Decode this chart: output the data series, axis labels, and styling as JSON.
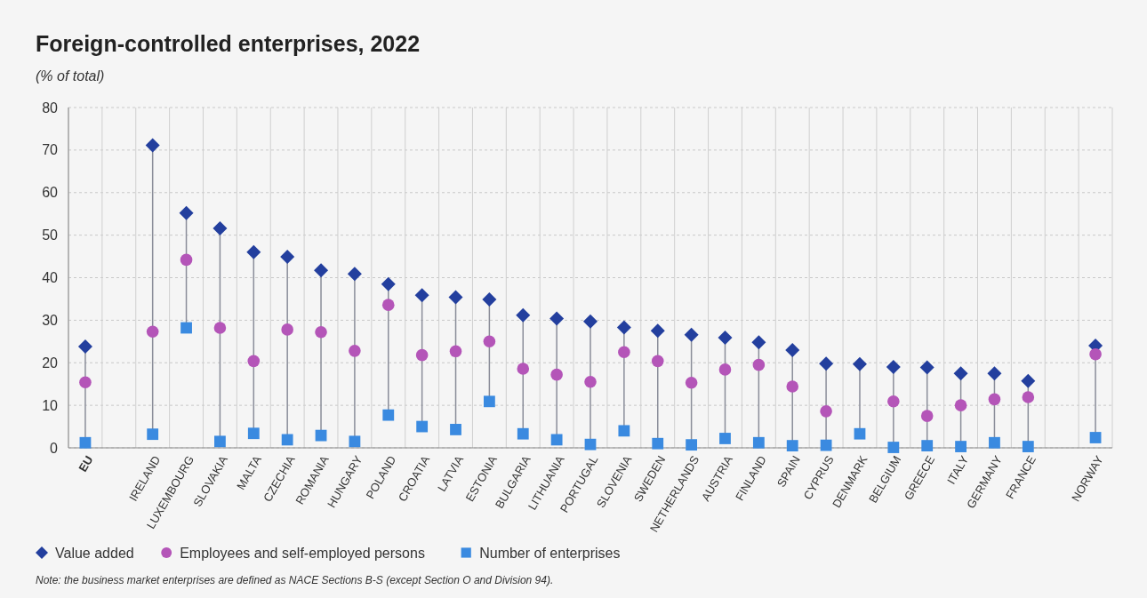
{
  "chart_data": {
    "type": "scatter",
    "title": "Foreign-controlled enterprises, 2022",
    "subtitle": "(% of total)",
    "categories": [
      "EU",
      null,
      "IRELAND",
      "LUXEMBOURG",
      "SLOVAKIA",
      "MALTA",
      "CZECHIA",
      "ROMANIA",
      "HUNGARY",
      "POLAND",
      "CROATIA",
      "LATVIA",
      "ESTONIA",
      "BULGARIA",
      "LITHUANIA",
      "PORTUGAL",
      "SLOVENIA",
      "SWEDEN",
      "NETHERLANDS",
      "AUSTRIA",
      "FINLAND",
      "SPAIN",
      "CYPRUS",
      "DENMARK",
      "BELGIUM",
      "GREECE",
      "ITALY",
      "GERMANY",
      "FRANCE",
      null,
      "NORWAY"
    ],
    "series": [
      {
        "name": "Value added",
        "color": "#233f9e",
        "marker": "diamond",
        "values": [
          23.8,
          null,
          71.1,
          55.2,
          51.6,
          46.0,
          44.9,
          41.7,
          40.9,
          38.5,
          35.9,
          35.4,
          34.9,
          31.2,
          30.4,
          29.7,
          28.3,
          27.5,
          26.6,
          25.9,
          24.8,
          23.0,
          19.8,
          19.7,
          19.0,
          18.9,
          17.5,
          17.5,
          15.7,
          null,
          24.0
        ]
      },
      {
        "name": "Employees and self-employed persons",
        "color": "#b455b8",
        "marker": "circle",
        "values": [
          15.4,
          null,
          27.3,
          44.2,
          28.2,
          20.4,
          27.8,
          27.2,
          22.8,
          33.6,
          21.8,
          22.7,
          25.0,
          18.6,
          17.2,
          15.5,
          22.5,
          20.4,
          15.3,
          18.4,
          19.5,
          14.4,
          8.6,
          null,
          10.9,
          7.5,
          10.0,
          11.4,
          11.9,
          null,
          22.0
        ]
      },
      {
        "name": "Number of enterprises",
        "color": "#3a8ae0",
        "marker": "square",
        "values": [
          1.2,
          null,
          3.2,
          28.2,
          1.5,
          3.4,
          1.9,
          2.9,
          1.5,
          7.7,
          5.0,
          4.3,
          10.9,
          3.3,
          1.9,
          0.8,
          4.0,
          1.0,
          0.7,
          2.2,
          1.2,
          0.5,
          0.6,
          3.3,
          0.1,
          0.5,
          0.3,
          1.2,
          0.3,
          null,
          2.4
        ]
      }
    ],
    "ylim": [
      0,
      80
    ],
    "yticks": [
      0,
      10,
      20,
      30,
      40,
      50,
      60,
      70,
      80
    ],
    "grid": true,
    "legend": "bottom left",
    "annotations": [
      "Note: the business market enterprises are defined as NACE Sections B-S (except Section O and Division 94)."
    ]
  }
}
